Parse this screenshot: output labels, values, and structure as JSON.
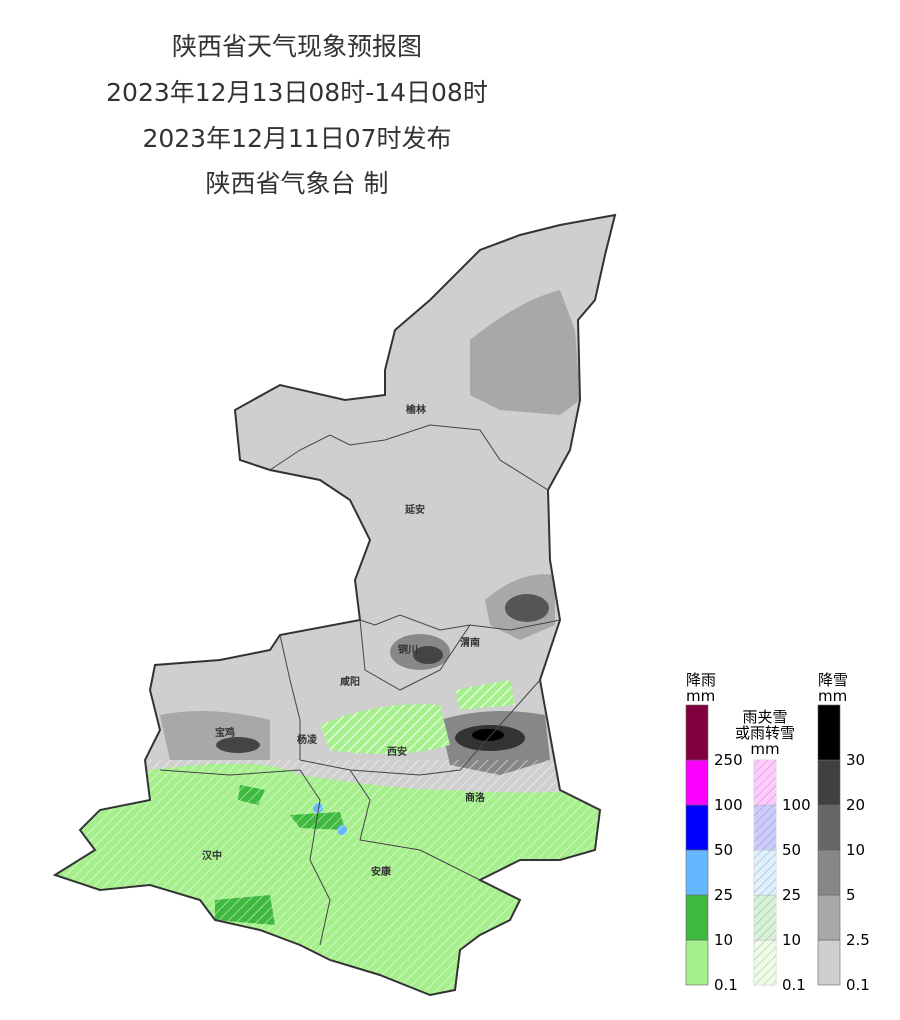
{
  "header": {
    "title": "陕西省天气现象预报图",
    "period": "2023年12月13日08时-14日08时",
    "issued": "2023年12月11日07时发布",
    "issuer": "陕西省气象台 制"
  },
  "cities": [
    {
      "label": "榆林"
    },
    {
      "label": "延安"
    },
    {
      "label": "铜川"
    },
    {
      "label": "咸阳"
    },
    {
      "label": "渭南"
    },
    {
      "label": "宝鸡"
    },
    {
      "label": "杨凌"
    },
    {
      "label": "西安"
    },
    {
      "label": "商洛"
    },
    {
      "label": "汉中"
    },
    {
      "label": "安康"
    }
  ],
  "legends": [
    {
      "title": "降雨",
      "unit": "mm",
      "hatched": false,
      "levels": [
        {
          "label": "0.1",
          "color": "#a5ef8c"
        },
        {
          "label": "10",
          "color": "#3db93d"
        },
        {
          "label": "25",
          "color": "#63b8ff"
        },
        {
          "label": "50",
          "color": "#0000fe"
        },
        {
          "label": "100",
          "color": "#fe00fe"
        },
        {
          "label": "250",
          "color": "#80003f"
        }
      ]
    },
    {
      "title": "雨夹雪",
      "title2": "或雨转雪",
      "unit": "mm",
      "hatched": true,
      "levels": [
        {
          "label": "0.1",
          "color": "#a5ef8c"
        },
        {
          "label": "10",
          "color": "#3db93d"
        },
        {
          "label": "25",
          "color": "#63b8ff"
        },
        {
          "label": "50",
          "color": "#0000fe"
        },
        {
          "label": "100",
          "color": "#fe00fe"
        }
      ]
    },
    {
      "title": "降雪",
      "unit": "mm",
      "hatched": false,
      "levels": [
        {
          "label": "0.1",
          "color": "#cfcfcf"
        },
        {
          "label": "2.5",
          "color": "#a8a8a8"
        },
        {
          "label": "5",
          "color": "#878787"
        },
        {
          "label": "10",
          "color": "#666666"
        },
        {
          "label": "20",
          "color": "#404040"
        },
        {
          "label": "30",
          "color": "#000000"
        }
      ]
    }
  ]
}
